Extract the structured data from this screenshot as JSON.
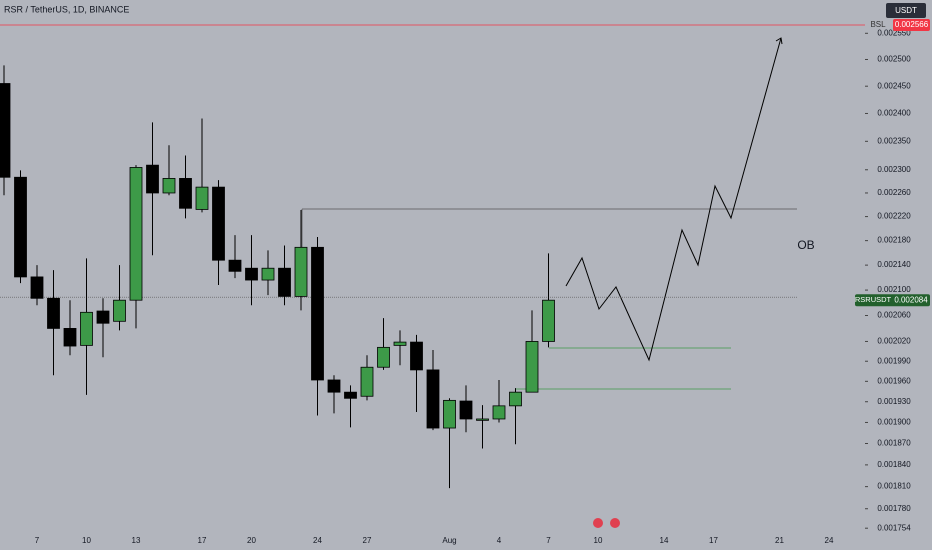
{
  "chart_data": {
    "type": "candlestick",
    "title": "RSR / TetherUS, 1D, BINANCE",
    "currency": "USDT",
    "categories": [
      null,
      null,
      "7",
      null,
      null,
      "10",
      null,
      null,
      "13",
      null,
      null,
      null,
      "17",
      null,
      null,
      "20",
      null,
      null,
      null,
      "24",
      null,
      null,
      "27",
      null,
      null,
      null,
      null,
      "Aug",
      null,
      null,
      "4",
      null,
      null,
      "7",
      null,
      null,
      "10",
      null,
      null,
      null,
      "14",
      null,
      null,
      "17",
      null,
      null,
      null,
      "21",
      null,
      null,
      "24"
    ],
    "open": [
      0.002455,
      0.002287,
      0.002121,
      0.002087,
      0.00204,
      0.002014,
      0.002067,
      0.002051,
      0.002084,
      0.002308,
      0.00226,
      0.002285,
      0.002232,
      0.00227,
      0.002148,
      0.002135,
      0.002116,
      0.002135,
      0.00209,
      0.002169,
      0.001962,
      0.001944,
      0.001938,
      0.001981,
      0.002014,
      0.002019,
      0.001977,
      0.001892,
      0.001931,
      0.001903,
      0.001905,
      0.001924,
      0.001944,
      0.00202,
      null,
      null,
      null,
      null,
      null,
      null,
      null,
      null,
      null,
      null,
      null,
      null,
      null,
      null,
      null,
      null,
      null
    ],
    "high": [
      0.002489,
      0.002299,
      0.00214,
      0.002132,
      0.002084,
      0.002151,
      0.002087,
      0.00214,
      0.002308,
      0.002384,
      0.002343,
      0.002325,
      0.002391,
      0.002282,
      0.002189,
      0.002189,
      0.002164,
      0.002172,
      0.002231,
      0.002186,
      0.001969,
      0.001954,
      0.001999,
      0.002056,
      0.002037,
      0.00203,
      0.002007,
      0.001935,
      0.001954,
      0.001925,
      0.001962,
      0.00195,
      0.002068,
      0.002159,
      null,
      null,
      null,
      null,
      null,
      null,
      null,
      null,
      null,
      null,
      null,
      null,
      null,
      null,
      null,
      null,
      null
    ],
    "low": [
      0.002256,
      0.002111,
      0.002076,
      0.001969,
      0.001999,
      0.00194,
      0.001996,
      0.002037,
      0.00204,
      0.002156,
      0.002256,
      0.002217,
      0.002227,
      0.002108,
      0.002119,
      0.002076,
      0.002092,
      0.002076,
      0.002068,
      0.00191,
      0.001913,
      0.001893,
      0.001932,
      0.001977,
      0.001984,
      0.001915,
      0.001889,
      0.001808,
      0.001886,
      0.001863,
      0.0019,
      0.001869,
      0.001944,
      0.002011,
      null,
      null,
      null,
      null,
      null,
      null,
      null,
      null,
      null,
      null,
      null,
      null,
      null,
      null,
      null,
      null,
      null
    ],
    "close": [
      0.002287,
      0.002121,
      0.002087,
      0.00204,
      0.002013,
      0.002065,
      0.002048,
      0.002084,
      0.002304,
      0.00226,
      0.002285,
      0.002234,
      0.00227,
      0.002148,
      0.00213,
      0.002116,
      0.002135,
      0.00209,
      0.002169,
      0.001962,
      0.001944,
      0.001935,
      0.001981,
      0.002011,
      0.002019,
      0.001977,
      0.001892,
      0.001932,
      0.001905,
      0.001905,
      0.001924,
      0.001944,
      0.00202,
      0.002084,
      null,
      null,
      null,
      null,
      null,
      null,
      null,
      null,
      null,
      null,
      null,
      null,
      null,
      null,
      null,
      null,
      null
    ],
    "up_color": "#3d9a48",
    "down_color": "#000000",
    "ylim": [
      0.001745,
      0.002615
    ],
    "log_scale": true,
    "grid": false,
    "yticks": [
      {
        "value": 0.00255,
        "label": "0.002550"
      },
      {
        "value": 0.0025,
        "label": "0.002500"
      },
      {
        "value": 0.00245,
        "label": "0.002450"
      },
      {
        "value": 0.0024,
        "label": "0.002400"
      },
      {
        "value": 0.00235,
        "label": "0.002350"
      },
      {
        "value": 0.0023,
        "label": "0.002300"
      },
      {
        "value": 0.00226,
        "label": "0.002260"
      },
      {
        "value": 0.00222,
        "label": "0.002220"
      },
      {
        "value": 0.00218,
        "label": "0.002180"
      },
      {
        "value": 0.00214,
        "label": "0.002140"
      },
      {
        "value": 0.0021,
        "label": "0.002100"
      },
      {
        "value": 0.00206,
        "label": "0.002060"
      },
      {
        "value": 0.00202,
        "label": "0.002020"
      },
      {
        "value": 0.00199,
        "label": "0.001990"
      },
      {
        "value": 0.00196,
        "label": "0.001960"
      },
      {
        "value": 0.00193,
        "label": "0.001930"
      },
      {
        "value": 0.0019,
        "label": "0.001900"
      },
      {
        "value": 0.00187,
        "label": "0.001870"
      },
      {
        "value": 0.00184,
        "label": "0.001840"
      },
      {
        "value": 0.00181,
        "label": "0.001810"
      },
      {
        "value": 0.00178,
        "label": "0.001780"
      },
      0.001754
    ],
    "price_lines": [
      {
        "name": "BSL",
        "value": 0.002566,
        "color": "#f23645"
      },
      {
        "name": "RSRUSDT",
        "value": 0.002084,
        "color": "#22602c"
      }
    ],
    "annotations": [
      "OB"
    ]
  }
}
